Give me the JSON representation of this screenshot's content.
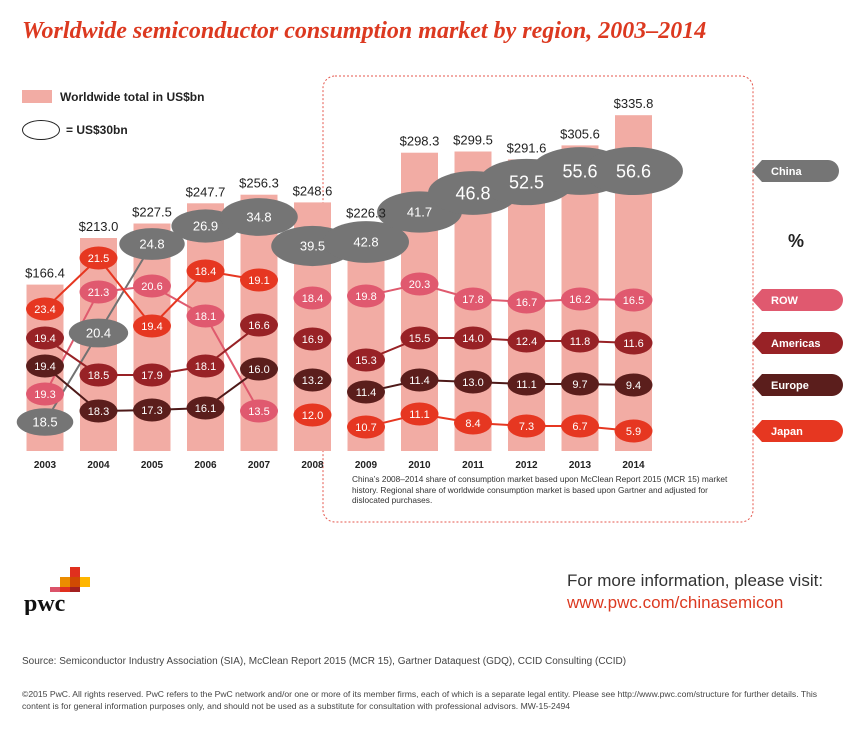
{
  "title": "Worldwide semiconductor consumption market by region, 2003–2014",
  "legend": {
    "total_label": "Worldwide total in US$bn",
    "scale_label": "= US$30bn"
  },
  "colors": {
    "bar": "#f2aca4",
    "China": "#757575",
    "ROW": "#e0596f",
    "Americas": "#982226",
    "Europe": "#5b1e1c",
    "Japan": "#e63721",
    "accent": "#dc3920"
  },
  "chart_data": {
    "type": "bar",
    "title": "Worldwide semiconductor consumption market by region, 2003–2014",
    "xlabel": "",
    "ylabel": "Worldwide total in US$bn",
    "categories": [
      "2003",
      "2004",
      "2005",
      "2006",
      "2007",
      "2008",
      "2009",
      "2010",
      "2011",
      "2012",
      "2013",
      "2014"
    ],
    "totals": [
      166.4,
      213.0,
      227.5,
      247.7,
      256.3,
      248.6,
      226.3,
      298.3,
      299.5,
      291.6,
      305.6,
      335.8
    ],
    "total_labels": [
      "$166.4",
      "$213.0",
      "$227.5",
      "$247.7",
      "$256.3",
      "$248.6",
      "$226.3",
      "$298.3",
      "$299.5",
      "$291.6",
      "$305.6",
      "$335.8"
    ],
    "share_unit": "%",
    "series": [
      {
        "name": "China",
        "values": [
          18.5,
          20.4,
          24.8,
          26.9,
          34.8,
          39.5,
          42.8,
          41.7,
          46.8,
          52.5,
          55.6,
          56.6
        ]
      },
      {
        "name": "ROW",
        "values": [
          19.3,
          21.3,
          20.6,
          18.1,
          13.5,
          18.4,
          19.8,
          20.3,
          17.8,
          16.7,
          16.2,
          16.5
        ]
      },
      {
        "name": "Americas",
        "values": [
          19.4,
          18.5,
          17.9,
          18.1,
          16.6,
          16.9,
          15.3,
          15.5,
          14.0,
          12.4,
          11.8,
          11.6
        ]
      },
      {
        "name": "Europe",
        "values": [
          19.4,
          18.3,
          17.3,
          16.1,
          16.0,
          13.2,
          11.4,
          11.4,
          13.0,
          11.1,
          9.7,
          9.4
        ]
      },
      {
        "name": "Japan",
        "values": [
          23.4,
          21.5,
          19.4,
          18.4,
          19.1,
          12.0,
          10.7,
          11.1,
          8.4,
          7.3,
          6.7,
          5.9
        ]
      }
    ],
    "note": "China’s 2008–2014 share of consumption market based upon McClean Report 2015 (MCR 15) market history. Regional share of worldwide consumption market is based upon Gartner and adjusted for dislocated purchases."
  },
  "logo_text": "pwc",
  "more_info": {
    "text": "For more information, please visit:",
    "url": "www.pwc.com/chinasemicon"
  },
  "source": "Source: Semiconductor Industry Association (SIA), McClean Report 2015 (MCR 15), Gartner Dataquest (GDQ), CCID Consulting (CCID)",
  "copyright": "©2015 PwC. All rights reserved. PwC refers to the PwC network and/or one or more of its member firms, each of which is a separate legal entity. Please see http://www.pwc.com/structure for further details. This content is for general information purposes only, and should not be used as a substitute for consultation with professional advisors. MW-15-2494"
}
